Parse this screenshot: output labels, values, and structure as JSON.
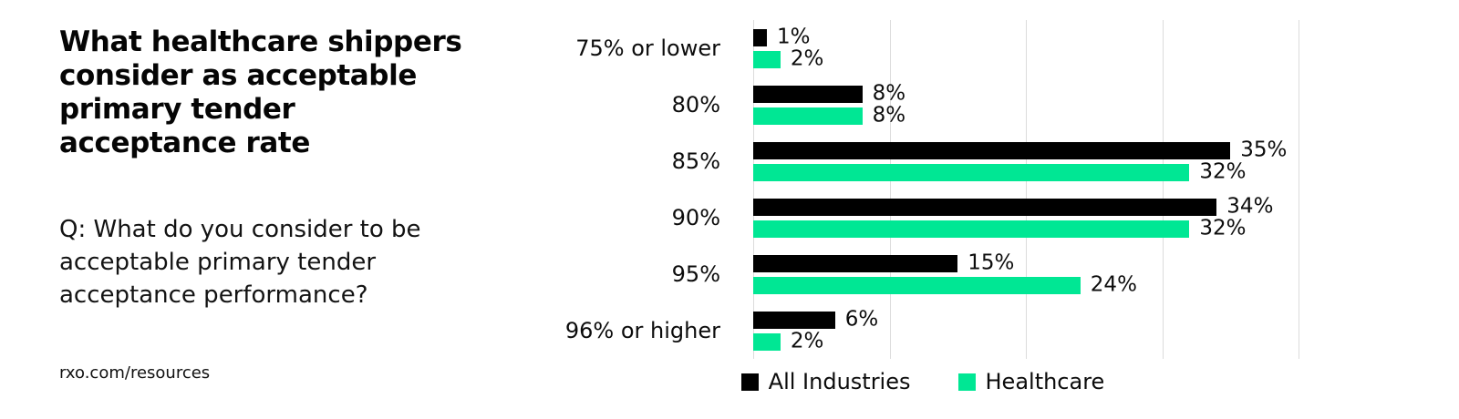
{
  "left_panel": {
    "title": "What healthcare shippers consider as acceptable primary tender acceptance rate",
    "subtitle": "Q: What do you consider to be acceptable primary tender acceptance performance?",
    "source": "rxo.com/resources"
  },
  "chart_data": {
    "type": "bar",
    "orientation": "horizontal",
    "title": "",
    "xlabel": "",
    "ylabel": "",
    "categories": [
      "75% or lower",
      "80%",
      "85%",
      "90%",
      "95%",
      "96% or higher"
    ],
    "series": [
      {
        "name": "All Industries",
        "color": "#000000",
        "values": [
          1,
          8,
          35,
          34,
          15,
          6
        ]
      },
      {
        "name": "Healthcare",
        "color": "#00e794",
        "values": [
          2,
          8,
          32,
          32,
          24,
          2
        ]
      }
    ],
    "value_suffix": "%",
    "xlim": [
      0,
      40
    ],
    "gridline_step": 10,
    "grid": true,
    "gridline_color": "#dcdcdc",
    "legend_position": "bottom"
  }
}
